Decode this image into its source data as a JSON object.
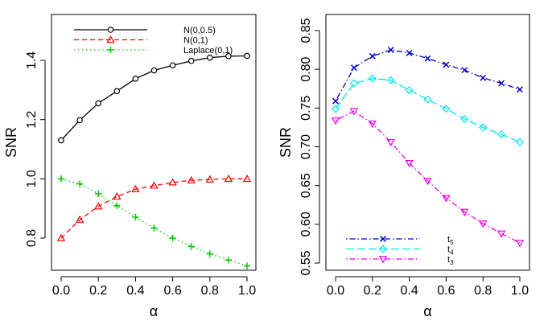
{
  "chart_data": [
    {
      "type": "line",
      "xlabel": "α",
      "ylabel": "SNR",
      "xlim": [
        0,
        1
      ],
      "ylim": [
        0.75,
        1.5
      ],
      "x_ticks": [
        "0.0",
        "0.2",
        "0.4",
        "0.6",
        "0.8",
        "1.0"
      ],
      "y_ticks": [
        "0.8",
        "1.0",
        "1.2",
        "1.4"
      ],
      "legend_position": "top-left",
      "x": [
        0,
        0.1,
        0.2,
        0.3,
        0.4,
        0.5,
        0.6,
        0.7,
        0.8,
        0.9,
        1.0
      ],
      "series": [
        {
          "name": "N(0,0.5)",
          "color": "#000000",
          "marker": "circle",
          "dash": "solid",
          "values": [
            1.13,
            1.198,
            1.255,
            1.296,
            1.338,
            1.366,
            1.383,
            1.398,
            1.409,
            1.414,
            1.415
          ]
        },
        {
          "name": "N(0,1)",
          "color": "#ff0000",
          "marker": "triangle",
          "dash": "dashed",
          "values": [
            0.8,
            0.862,
            0.907,
            0.94,
            0.965,
            0.977,
            0.988,
            0.995,
            0.998,
            1.0,
            1.0
          ]
        },
        {
          "name": "Laplace(0,1)",
          "color": "#00cc00",
          "marker": "plus",
          "dash": "dotted",
          "values": [
            1.0,
            0.983,
            0.95,
            0.909,
            0.871,
            0.834,
            0.8,
            0.772,
            0.747,
            0.726,
            0.706
          ]
        }
      ]
    },
    {
      "type": "line",
      "xlabel": "α",
      "ylabel": "SNR",
      "xlim": [
        0,
        1
      ],
      "ylim": [
        0.55,
        0.85
      ],
      "x_ticks": [
        "0.0",
        "0.2",
        "0.4",
        "0.6",
        "0.8",
        "1.0"
      ],
      "y_ticks": [
        "0.55",
        "0.60",
        "0.65",
        "0.70",
        "0.75",
        "0.80",
        "0.85"
      ],
      "legend_position": "bottom-left",
      "x": [
        0,
        0.1,
        0.2,
        0.3,
        0.4,
        0.5,
        0.6,
        0.7,
        0.8,
        0.9,
        1.0
      ],
      "series": [
        {
          "name": "t",
          "subscript": "5",
          "color": "#0000cc",
          "marker": "cross",
          "dash": "dotdash",
          "values": [
            0.759,
            0.802,
            0.817,
            0.825,
            0.821,
            0.814,
            0.806,
            0.799,
            0.789,
            0.782,
            0.774
          ]
        },
        {
          "name": "t",
          "subscript": "4",
          "color": "#00e5ee",
          "marker": "diamond",
          "dash": "longdash",
          "values": [
            0.749,
            0.782,
            0.788,
            0.786,
            0.773,
            0.761,
            0.749,
            0.736,
            0.725,
            0.716,
            0.706
          ]
        },
        {
          "name": "t",
          "subscript": "3",
          "color": "#ee00ee",
          "marker": "invtriangle",
          "dash": "dotdash",
          "values": [
            0.734,
            0.746,
            0.73,
            0.706,
            0.679,
            0.656,
            0.634,
            0.616,
            0.601,
            0.588,
            0.576
          ]
        }
      ]
    }
  ]
}
